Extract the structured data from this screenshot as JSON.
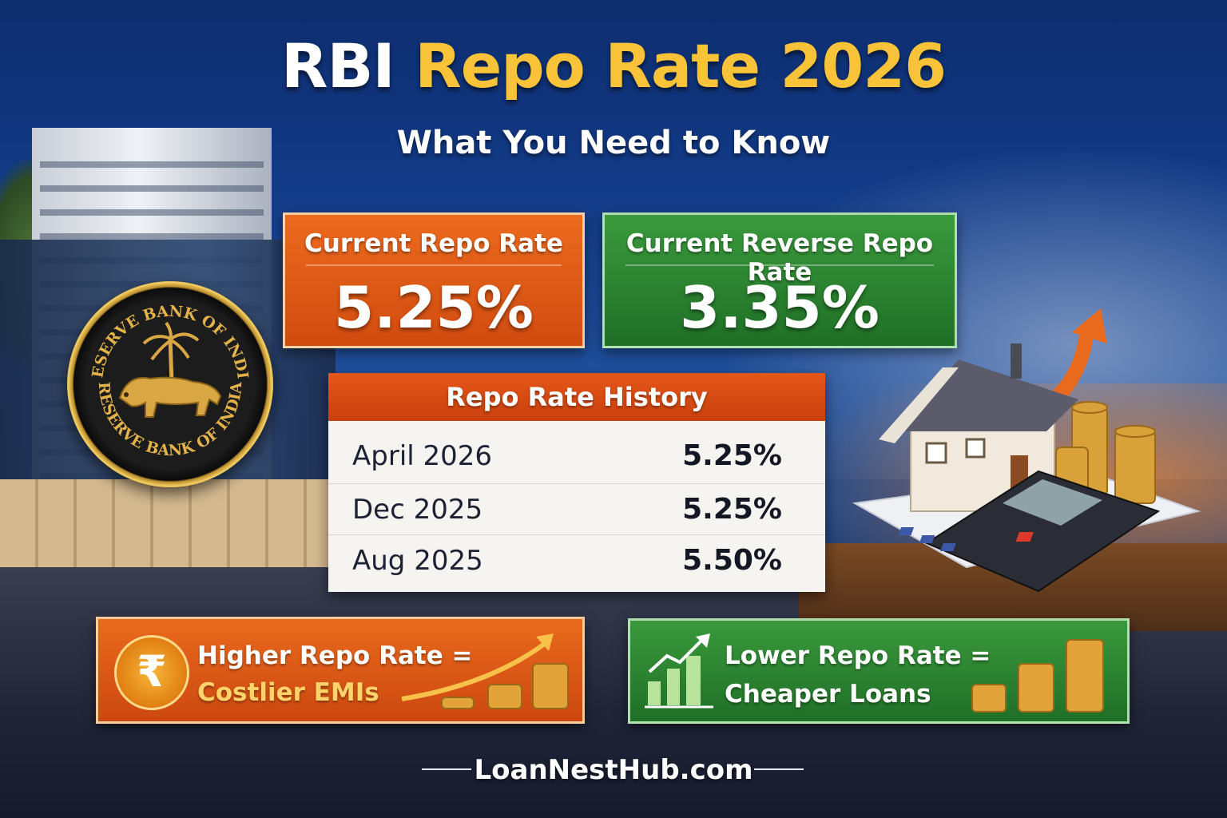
{
  "title": {
    "part1": "RBI",
    "part2": "Repo Rate 2026"
  },
  "subtitle": "What You Need to Know",
  "seal": {
    "text_top": "RESERVE BANK OF INDIA",
    "text_bottom": "RESERVE BANK OF INDIA"
  },
  "current_repo": {
    "label": "Current Repo Rate",
    "value": "5.25%"
  },
  "current_reverse_repo": {
    "label": "Current Reverse Repo Rate",
    "value": "3.35%"
  },
  "history": {
    "heading": "Repo Rate History",
    "rows": [
      {
        "period": "April 2026",
        "rate": "5.25%"
      },
      {
        "period": "Dec 2025",
        "rate": "5.25%"
      },
      {
        "period": "Aug 2025",
        "rate": "5.50%"
      }
    ]
  },
  "banner_higher": {
    "icon": "rupee-icon",
    "symbol": "₹",
    "line1": "Higher Repo Rate =",
    "line2": "Costlier EMIs"
  },
  "banner_lower": {
    "icon": "bar-chart-up-icon",
    "line1": "Lower Repo Rate =",
    "line2": "Cheaper Loans"
  },
  "footer": "LoanNestHub.com",
  "colors": {
    "orange": "#e4571a",
    "green": "#2f8a33",
    "gold": "#f8c338",
    "navy": "#123a86"
  }
}
